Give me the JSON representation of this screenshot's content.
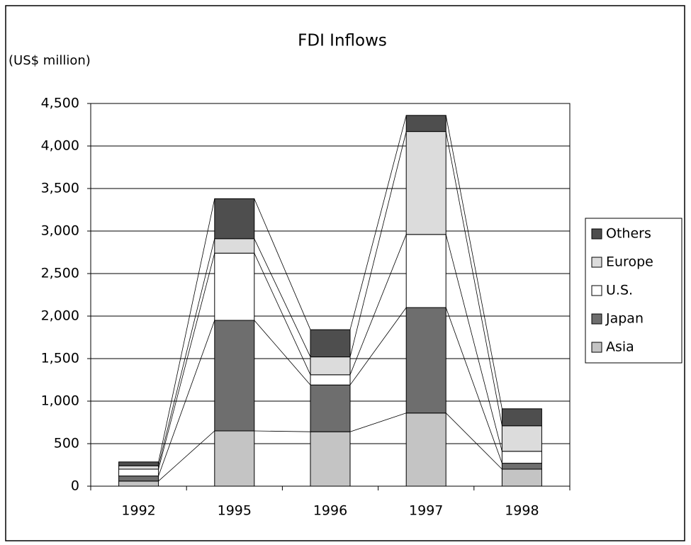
{
  "chart_data": {
    "type": "stacked_bar",
    "title": "FDI Inflows",
    "y_label": "(US$ million)",
    "categories": [
      "1992",
      "1995",
      "1996",
      "1997",
      "1998"
    ],
    "series": [
      {
        "name": "Asia",
        "color": "#c4c4c4",
        "values": [
          60,
          650,
          640,
          860,
          200
        ]
      },
      {
        "name": "Japan",
        "color": "#6e6e6e",
        "values": [
          60,
          1300,
          550,
          1240,
          70
        ]
      },
      {
        "name": "U.S.",
        "color": "#ffffff",
        "values": [
          80,
          790,
          120,
          860,
          140
        ]
      },
      {
        "name": "Europe",
        "color": "#dcdcdc",
        "values": [
          40,
          170,
          210,
          1210,
          300
        ]
      },
      {
        "name": "Others",
        "color": "#4e4e4e",
        "values": [
          45,
          470,
          320,
          190,
          200
        ]
      }
    ],
    "ylim": [
      0,
      4500
    ],
    "yticks": [
      0,
      500,
      {
        "value": 1000,
        "label": "1,000"
      },
      {
        "value": 1500,
        "label": "1,500"
      },
      {
        "value": 2000,
        "label": "2,000"
      },
      {
        "value": 2500,
        "label": "2,500"
      },
      {
        "value": 3000,
        "label": "3,000"
      },
      {
        "value": 3500,
        "label": "3,500"
      },
      {
        "value": 4000,
        "label": "4,000"
      },
      {
        "value": 4500,
        "label": "4,500"
      }
    ],
    "grid": true,
    "legend": "right"
  }
}
